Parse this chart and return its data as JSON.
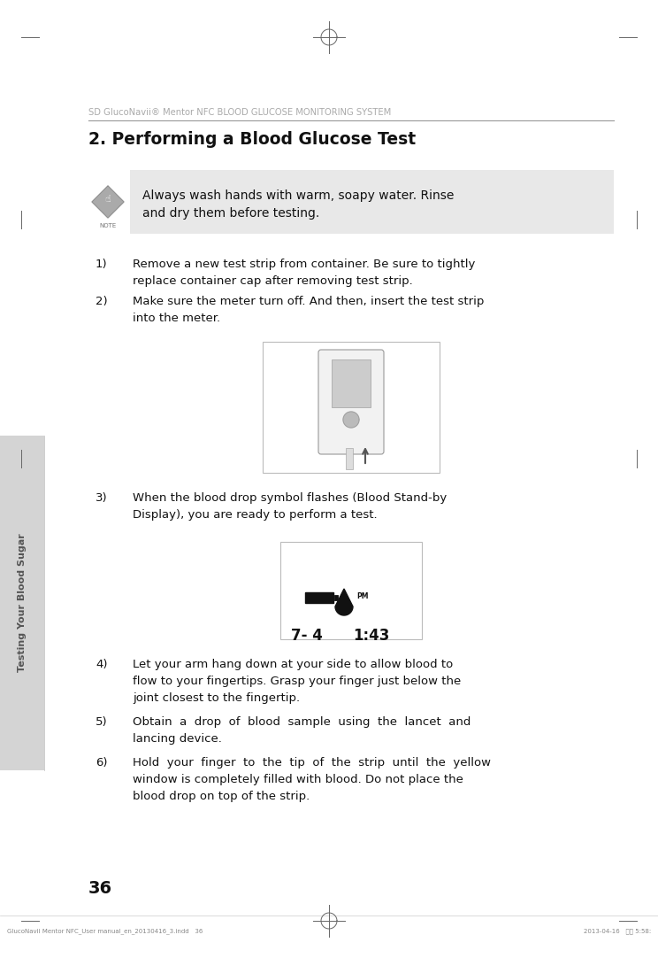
{
  "page_bg": "#ffffff",
  "page_width": 7.44,
  "page_height": 10.82,
  "dpi": 100,
  "header_text": "SD GlucoNavii® Mentor NFC BLOOD GLUCOSE MONITORING SYSTEM",
  "header_color": "#aaaaaa",
  "title_text": "2. Performing a Blood Glucose Test",
  "note_bg": "#e8e8e8",
  "note_line1": "Always wash hands with warm, soapy water. Rinse",
  "note_line2": "and dry them before testing.",
  "note_label": "NOTE",
  "steps": [
    {
      "num": "1)",
      "text": "Remove a new test strip from container. Be sure to tightly\nreplace container cap after removing test strip."
    },
    {
      "num": "2)",
      "text": "Make sure the meter turn off. And then, insert the test strip\ninto the meter."
    },
    {
      "num": "3)",
      "text": "When the blood drop symbol flashes (Blood Stand-by\nDisplay), you are ready to perform a test."
    },
    {
      "num": "4)",
      "text": "Let your arm hang down at your side to allow blood to\nflow to your fingertips. Grasp your finger just below the\njoint closest to the fingertip."
    },
    {
      "num": "5)",
      "text": "Obtain  a  drop  of  blood  sample  using  the  lancet  and\nlancing device."
    },
    {
      "num": "6)",
      "text": "Hold  your  finger  to  the  tip  of  the  strip  until  the  yellow\nwindow is completely filled with blood. Do not place the\nblood drop on top of the strip."
    }
  ],
  "sidebar_text": "Testing Your Blood Sugar",
  "sidebar_bg": "#d4d4d4",
  "page_number": "36",
  "footer_left": "GlucoNavii Mentor NFC_User manual_en_20130416_3.indd   36",
  "footer_right": "2013-04-16   오후 5:58:",
  "text_color": "#1a1a1a",
  "sidebar_text_color": "#555555",
  "mark_color": "#555555",
  "header_line_color": "#999999",
  "note_border_color": "#cccccc",
  "img_border_color": "#bbbbbb"
}
